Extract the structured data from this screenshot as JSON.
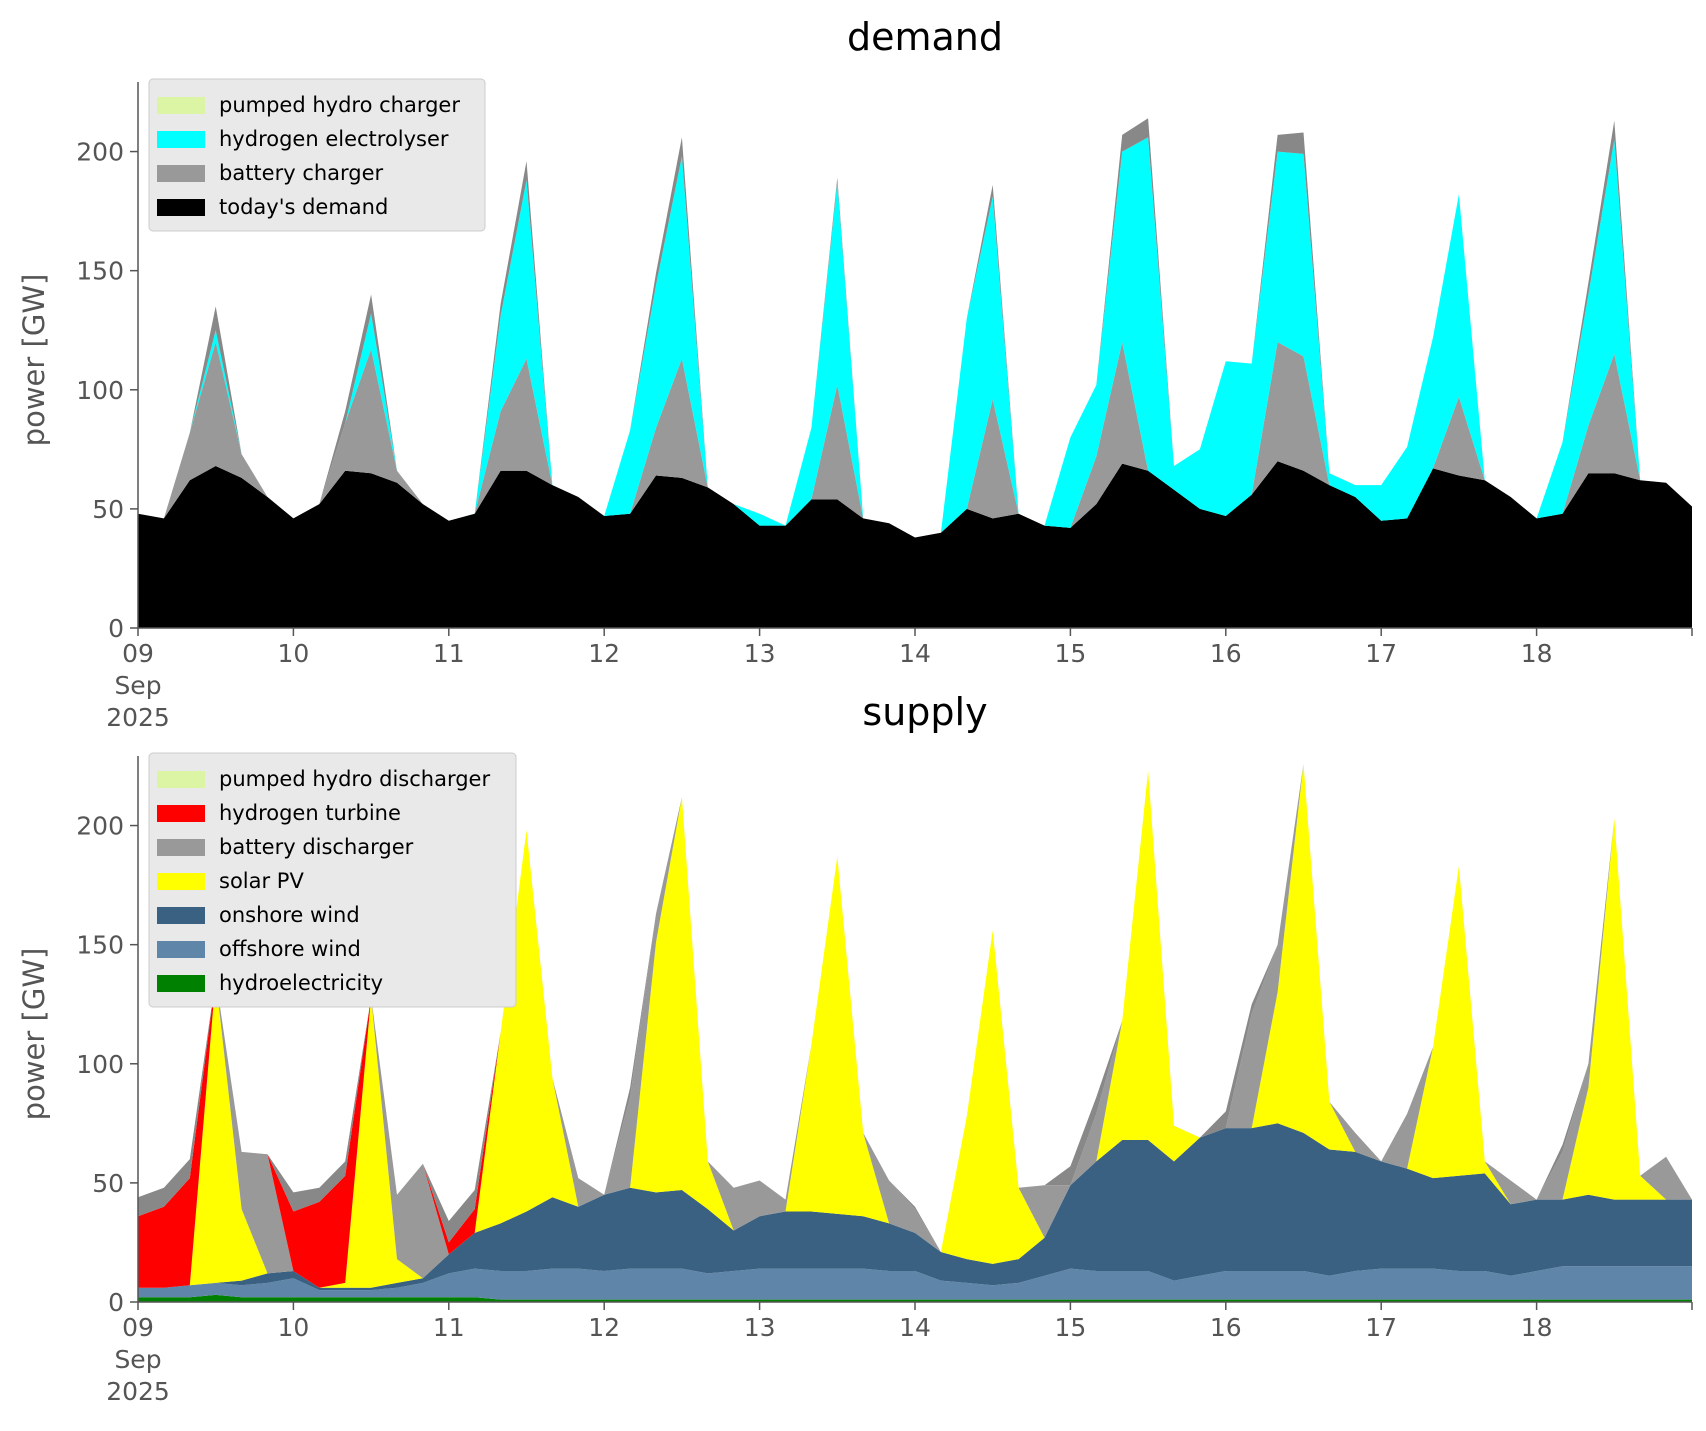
{
  "colors": {
    "pumped hydro": "#dcf5a5",
    "hydrogen electrolyser": "#00ffff",
    "hydrogen turbine": "#ff0000",
    "battery": "#999999",
    "today's demand": "#000000",
    "solar PV": "#ffff00",
    "onshore wind": "#3b6182",
    "offshore wind": "#5f86a8",
    "hydroelectricity": "#008000"
  },
  "chart_data": [
    {
      "type": "area",
      "stacked": true,
      "title": "demand",
      "xlabel": "",
      "ylabel": "power [GW]",
      "ylim": [
        0,
        225
      ],
      "xlim": [
        "2025-09-09 00:00",
        "2025-09-19 00:00"
      ],
      "x_tick_labels": [
        "09\nSep\n2025",
        "10",
        "11",
        "12",
        "13",
        "14",
        "15",
        "16",
        "17",
        "18"
      ],
      "y_tick_labels": [
        "0",
        "50",
        "100",
        "150",
        "200"
      ],
      "legend_placement": "top-left",
      "legend": [
        "pumped hydro charger",
        "hydrogen electrolyser",
        "battery charger",
        "today's demand"
      ],
      "x": [
        "2025-09-09 00:00",
        "2025-09-09 04:00",
        "2025-09-09 08:00",
        "2025-09-09 12:00",
        "2025-09-09 16:00",
        "2025-09-09 20:00",
        "2025-09-10 00:00",
        "2025-09-10 04:00",
        "2025-09-10 08:00",
        "2025-09-10 12:00",
        "2025-09-10 16:00",
        "2025-09-10 20:00",
        "2025-09-11 00:00",
        "2025-09-11 04:00",
        "2025-09-11 08:00",
        "2025-09-11 12:00",
        "2025-09-11 16:00",
        "2025-09-11 20:00",
        "2025-09-12 00:00",
        "2025-09-12 04:00",
        "2025-09-12 08:00",
        "2025-09-12 12:00",
        "2025-09-12 16:00",
        "2025-09-12 20:00",
        "2025-09-13 00:00",
        "2025-09-13 04:00",
        "2025-09-13 08:00",
        "2025-09-13 12:00",
        "2025-09-13 16:00",
        "2025-09-13 20:00",
        "2025-09-14 00:00",
        "2025-09-14 04:00",
        "2025-09-14 08:00",
        "2025-09-14 12:00",
        "2025-09-14 16:00",
        "2025-09-14 20:00",
        "2025-09-15 00:00",
        "2025-09-15 04:00",
        "2025-09-15 08:00",
        "2025-09-15 12:00",
        "2025-09-15 16:00",
        "2025-09-15 20:00",
        "2025-09-16 00:00",
        "2025-09-16 04:00",
        "2025-09-16 08:00",
        "2025-09-16 12:00",
        "2025-09-16 16:00",
        "2025-09-16 20:00",
        "2025-09-17 00:00",
        "2025-09-17 04:00",
        "2025-09-17 08:00",
        "2025-09-17 12:00",
        "2025-09-17 16:00",
        "2025-09-17 20:00",
        "2025-09-18 00:00",
        "2025-09-18 04:00",
        "2025-09-18 08:00",
        "2025-09-18 12:00",
        "2025-09-18 16:00",
        "2025-09-18 20:00",
        "2025-09-19 00:00"
      ],
      "series": [
        {
          "name": "today's demand",
          "values": [
            48,
            46,
            62,
            68,
            63,
            55,
            46,
            52,
            66,
            65,
            61,
            52,
            45,
            48,
            66,
            66,
            60,
            55,
            47,
            48,
            64,
            63,
            59,
            52,
            43,
            43,
            54,
            54,
            46,
            44,
            38,
            40,
            50,
            46,
            48,
            43,
            42,
            52,
            69,
            66,
            58,
            50,
            47,
            56,
            70,
            66,
            60,
            55,
            45,
            46,
            67,
            64,
            62,
            55,
            46,
            48,
            65,
            65,
            62,
            61,
            51
          ]
        },
        {
          "name": "battery charger",
          "values": [
            0,
            0,
            20,
            52,
            10,
            0,
            0,
            0,
            20,
            52,
            5,
            0,
            0,
            0,
            25,
            47,
            0,
            0,
            0,
            0,
            20,
            50,
            0,
            0,
            0,
            0,
            0,
            48,
            0,
            0,
            0,
            0,
            0,
            50,
            0,
            0,
            0,
            20,
            51,
            0,
            0,
            0,
            0,
            0,
            50,
            48,
            0,
            0,
            0,
            0,
            0,
            33,
            0,
            0,
            0,
            0,
            20,
            50,
            0,
            0,
            0
          ]
        },
        {
          "name": "hydrogen electrolyser",
          "values": [
            0,
            0,
            0,
            5,
            0,
            0,
            0,
            0,
            0,
            15,
            0,
            0,
            0,
            0,
            40,
            75,
            0,
            0,
            0,
            35,
            60,
            85,
            0,
            0,
            5,
            0,
            30,
            85,
            0,
            0,
            0,
            0,
            80,
            85,
            0,
            0,
            38,
            30,
            80,
            140,
            10,
            25,
            65,
            55,
            80,
            85,
            5,
            5,
            15,
            30,
            55,
            85,
            0,
            0,
            0,
            30,
            55,
            90,
            0,
            0,
            0
          ]
        },
        {
          "name": "pumped hydro charger",
          "values": [
            0,
            0,
            0,
            10,
            0,
            0,
            0,
            0,
            5,
            8,
            0,
            0,
            0,
            0,
            5,
            8,
            0,
            0,
            0,
            0,
            5,
            8,
            0,
            0,
            0,
            0,
            0,
            2,
            0,
            0,
            0,
            0,
            0,
            5,
            0,
            0,
            0,
            0,
            7,
            8,
            0,
            0,
            0,
            0,
            7,
            9,
            0,
            0,
            0,
            0,
            0,
            0,
            0,
            0,
            0,
            0,
            5,
            8,
            0,
            0,
            0
          ]
        }
      ]
    },
    {
      "type": "area",
      "stacked": true,
      "title": "supply",
      "xlabel": "",
      "ylabel": "power [GW]",
      "ylim": [
        0,
        225
      ],
      "xlim": [
        "2025-09-09 00:00",
        "2025-09-19 00:00"
      ],
      "x_tick_labels": [
        "09\nSep\n2025",
        "10",
        "11",
        "12",
        "13",
        "14",
        "15",
        "16",
        "17",
        "18"
      ],
      "y_tick_labels": [
        "0",
        "50",
        "100",
        "150",
        "200"
      ],
      "legend_placement": "top-left",
      "legend": [
        "pumped hydro discharger",
        "hydrogen turbine",
        "battery discharger",
        "solar PV",
        "onshore wind",
        "offshore wind",
        "hydroelectricity"
      ],
      "x": [
        "2025-09-09 00:00",
        "2025-09-09 04:00",
        "2025-09-09 08:00",
        "2025-09-09 12:00",
        "2025-09-09 16:00",
        "2025-09-09 20:00",
        "2025-09-10 00:00",
        "2025-09-10 04:00",
        "2025-09-10 08:00",
        "2025-09-10 12:00",
        "2025-09-10 16:00",
        "2025-09-10 20:00",
        "2025-09-11 00:00",
        "2025-09-11 04:00",
        "2025-09-11 08:00",
        "2025-09-11 12:00",
        "2025-09-11 16:00",
        "2025-09-11 20:00",
        "2025-09-12 00:00",
        "2025-09-12 04:00",
        "2025-09-12 08:00",
        "2025-09-12 12:00",
        "2025-09-12 16:00",
        "2025-09-12 20:00",
        "2025-09-13 00:00",
        "2025-09-13 04:00",
        "2025-09-13 08:00",
        "2025-09-13 12:00",
        "2025-09-13 16:00",
        "2025-09-13 20:00",
        "2025-09-14 00:00",
        "2025-09-14 04:00",
        "2025-09-14 08:00",
        "2025-09-14 12:00",
        "2025-09-14 16:00",
        "2025-09-14 20:00",
        "2025-09-15 00:00",
        "2025-09-15 04:00",
        "2025-09-15 08:00",
        "2025-09-15 12:00",
        "2025-09-15 16:00",
        "2025-09-15 20:00",
        "2025-09-16 00:00",
        "2025-09-16 04:00",
        "2025-09-16 08:00",
        "2025-09-16 12:00",
        "2025-09-16 16:00",
        "2025-09-16 20:00",
        "2025-09-17 00:00",
        "2025-09-17 04:00",
        "2025-09-17 08:00",
        "2025-09-17 12:00",
        "2025-09-17 16:00",
        "2025-09-17 20:00",
        "2025-09-18 00:00",
        "2025-09-18 04:00",
        "2025-09-18 08:00",
        "2025-09-18 12:00",
        "2025-09-18 16:00",
        "2025-09-18 20:00",
        "2025-09-19 00:00"
      ],
      "series": [
        {
          "name": "hydroelectricity",
          "values": [
            2,
            2,
            2,
            3,
            2,
            2,
            2,
            2,
            2,
            2,
            2,
            2,
            2,
            2,
            1,
            1,
            1,
            1,
            1,
            1,
            1,
            1,
            1,
            1,
            1,
            1,
            1,
            1,
            1,
            1,
            1,
            1,
            1,
            1,
            1,
            1,
            1,
            1,
            1,
            1,
            1,
            1,
            1,
            1,
            1,
            1,
            1,
            1,
            1,
            1,
            1,
            1,
            1,
            1,
            1,
            1,
            1,
            1,
            1,
            1,
            1
          ]
        },
        {
          "name": "offshore wind",
          "values": [
            4,
            4,
            5,
            5,
            5,
            6,
            8,
            3,
            3,
            3,
            4,
            6,
            10,
            12,
            12,
            12,
            13,
            13,
            12,
            13,
            13,
            13,
            11,
            12,
            13,
            13,
            13,
            13,
            13,
            12,
            12,
            8,
            7,
            6,
            7,
            10,
            13,
            12,
            12,
            12,
            8,
            10,
            12,
            12,
            12,
            12,
            10,
            12,
            13,
            13,
            13,
            12,
            12,
            10,
            12,
            14,
            14,
            14,
            14,
            14,
            14
          ]
        },
        {
          "name": "onshore wind",
          "values": [
            0,
            0,
            0,
            0,
            2,
            4,
            3,
            1,
            1,
            1,
            2,
            2,
            8,
            15,
            20,
            25,
            30,
            26,
            32,
            34,
            32,
            33,
            27,
            17,
            22,
            24,
            24,
            23,
            22,
            20,
            16,
            12,
            10,
            9,
            10,
            16,
            35,
            46,
            55,
            55,
            50,
            58,
            60,
            60,
            62,
            58,
            53,
            50,
            45,
            42,
            38,
            40,
            41,
            30,
            30,
            28,
            30,
            28,
            28,
            28,
            28
          ]
        },
        {
          "name": "solar PV",
          "values": [
            0,
            0,
            0,
            128,
            30,
            0,
            0,
            0,
            2,
            122,
            10,
            0,
            0,
            0,
            80,
            160,
            50,
            0,
            0,
            0,
            105,
            165,
            20,
            0,
            0,
            0,
            70,
            150,
            35,
            0,
            0,
            0,
            60,
            140,
            30,
            0,
            0,
            0,
            50,
            155,
            15,
            0,
            0,
            0,
            55,
            155,
            20,
            0,
            0,
            0,
            55,
            130,
            5,
            0,
            0,
            0,
            45,
            160,
            10,
            0,
            0
          ]
        },
        {
          "name": "battery discharger",
          "values": [
            0,
            0,
            0,
            0,
            24,
            50,
            0,
            0,
            0,
            0,
            27,
            48,
            0,
            0,
            0,
            0,
            0,
            12,
            0,
            38,
            12,
            0,
            0,
            18,
            15,
            5,
            0,
            0,
            0,
            18,
            10,
            0,
            0,
            0,
            0,
            22,
            0,
            20,
            0,
            0,
            0,
            0,
            0,
            48,
            20,
            0,
            0,
            8,
            0,
            23,
            0,
            0,
            0,
            10,
            0,
            20,
            10,
            0,
            0,
            18,
            0
          ]
        },
        {
          "name": "hydrogen turbine",
          "values": [
            30,
            34,
            45,
            0,
            0,
            0,
            25,
            36,
            45,
            0,
            0,
            0,
            5,
            10,
            0,
            0,
            0,
            0,
            0,
            0,
            0,
            0,
            0,
            0,
            0,
            0,
            0,
            0,
            0,
            0,
            0,
            0,
            0,
            0,
            0,
            0,
            0,
            0,
            0,
            0,
            0,
            0,
            0,
            0,
            0,
            0,
            0,
            0,
            0,
            0,
            0,
            0,
            0,
            0,
            0,
            0,
            0,
            0,
            0,
            0,
            0
          ]
        },
        {
          "name": "pumped hydro discharger",
          "values": [
            8,
            8,
            8,
            0,
            0,
            0,
            8,
            6,
            6,
            0,
            0,
            0,
            9,
            8,
            0,
            0,
            0,
            0,
            0,
            4,
            0,
            0,
            0,
            0,
            0,
            0,
            0,
            0,
            0,
            0,
            1,
            0,
            0,
            0,
            0,
            0,
            8,
            7,
            0,
            0,
            0,
            0,
            7,
            4,
            0,
            0,
            0,
            0,
            0,
            0,
            0,
            0,
            0,
            0,
            0,
            3,
            0,
            0,
            0,
            0,
            0
          ]
        }
      ]
    }
  ],
  "panels": [
    {
      "title": "demand",
      "ylabel": "power [GW]",
      "y_ticks": [
        "0",
        "50",
        "100",
        "150",
        "200"
      ],
      "x_ticks": [
        "09",
        "10",
        "11",
        "12",
        "13",
        "14",
        "15",
        "16",
        "17",
        "18"
      ],
      "x_first_sub": [
        "Sep",
        "2025"
      ],
      "legend": [
        {
          "label": "pumped hydro charger",
          "color": "#dcf5a5"
        },
        {
          "label": "hydrogen electrolyser",
          "color": "#00ffff"
        },
        {
          "label": "battery charger",
          "color": "#999999"
        },
        {
          "label": "today's demand",
          "color": "#000000"
        }
      ]
    },
    {
      "title": "supply",
      "ylabel": "power [GW]",
      "y_ticks": [
        "0",
        "50",
        "100",
        "150",
        "200"
      ],
      "x_ticks": [
        "09",
        "10",
        "11",
        "12",
        "13",
        "14",
        "15",
        "16",
        "17",
        "18"
      ],
      "x_first_sub": [
        "Sep",
        "2025"
      ],
      "legend": [
        {
          "label": "pumped hydro discharger",
          "color": "#dcf5a5"
        },
        {
          "label": "hydrogen turbine",
          "color": "#ff0000"
        },
        {
          "label": "battery discharger",
          "color": "#999999"
        },
        {
          "label": "solar PV",
          "color": "#ffff00"
        },
        {
          "label": "onshore wind",
          "color": "#3b6182"
        },
        {
          "label": "offshore wind",
          "color": "#5f86a8"
        },
        {
          "label": "hydroelectricity",
          "color": "#008000"
        }
      ]
    }
  ]
}
